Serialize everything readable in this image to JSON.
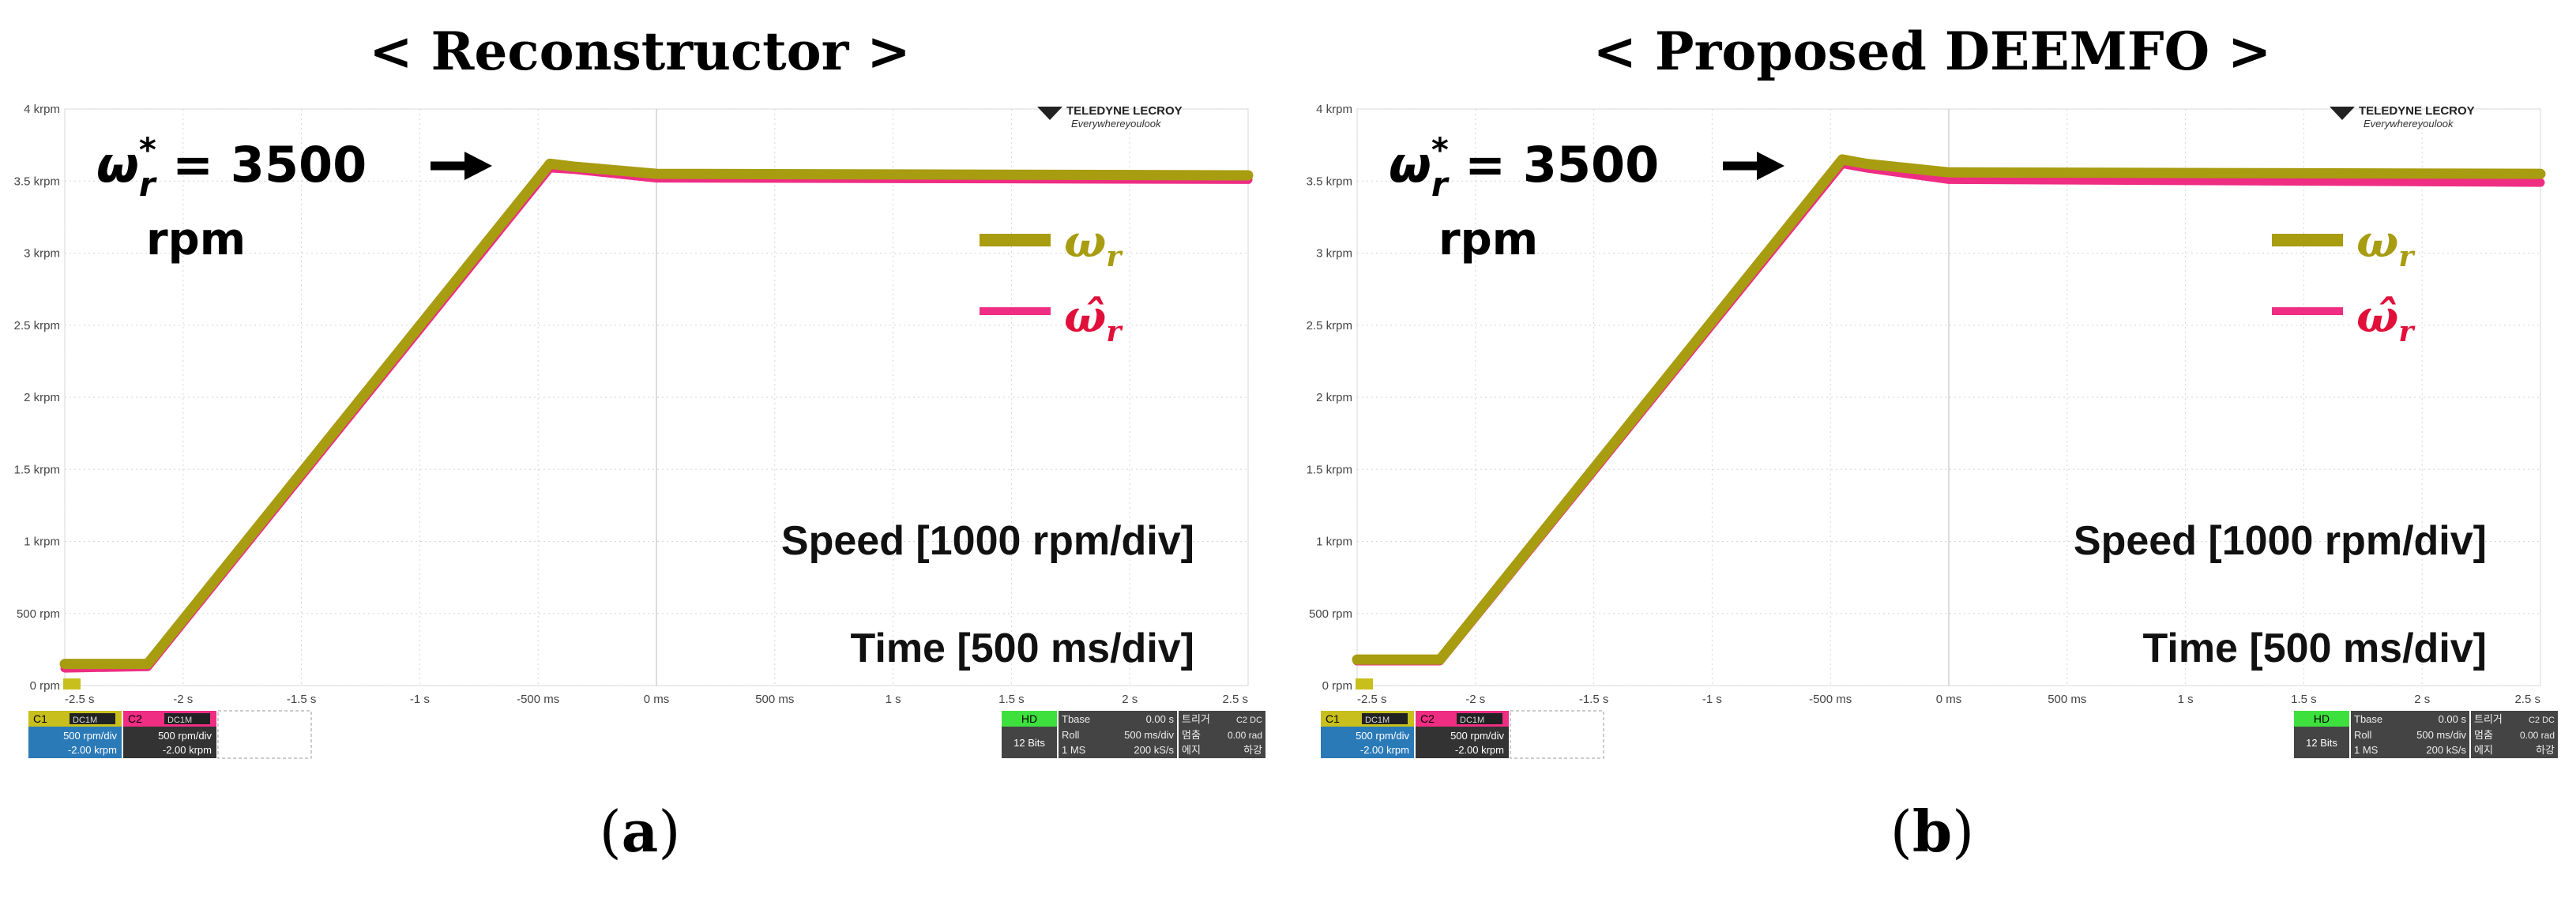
{
  "panels": [
    {
      "id": "a",
      "title": "< Reconstructor >",
      "caption_open": "(",
      "caption_letter": "a",
      "caption_close": ")",
      "y_ticks": [
        "0 rpm",
        "500 rpm",
        "1 krpm",
        "1.5 krpm",
        "2 krpm",
        "2.5 krpm",
        "3 krpm",
        "3.5 krpm",
        "4 krpm"
      ],
      "x_ticks": [
        "-2.5 s",
        "-2 s",
        "-1.5 s",
        "-1 s",
        "-500 ms",
        "0 ms",
        "500 ms",
        "1 s",
        "1.5 s",
        "2 s",
        "2.5 s"
      ],
      "brand": "TELEDYNE LECROY",
      "brand_sub": "Everywhereyoulook",
      "ref_label_math": "ω*r = 3500",
      "ref_label_unit": "rpm",
      "legend": [
        {
          "label": "ωr",
          "color": "#a89c10"
        },
        {
          "label": "ω̂r",
          "color": "#ee2d83"
        }
      ],
      "speed_label": "Speed [1000 rpm/div]",
      "time_label": "Time [500 ms/div]",
      "status": {
        "c1": "C1",
        "c1_mode": "DC1M",
        "c1_scale": "500 rpm/div",
        "c1_offset": "-2.00 krpm",
        "c2": "C2",
        "c2_mode": "DC1M",
        "c2_scale": "500 rpm/div",
        "c2_offset": "-2.00 krpm",
        "hd": "HD",
        "bits": "12 Bits",
        "tbase": "Tbase",
        "tbase_val": "0.00 s",
        "roll": "Roll",
        "roll_val": "500 ms/div",
        "ms": "1 MS",
        "rate": "200 kS/s",
        "trig": "트리거",
        "trig_mode": "C2 DC",
        "stop": "멈춤",
        "stop_val": "0.00 rad",
        "edge": "에지",
        "edge_val": "하강"
      }
    },
    {
      "id": "b",
      "title": "< Proposed DEEMFO >",
      "caption_open": "(",
      "caption_letter": "b",
      "caption_close": ")",
      "y_ticks": [
        "0 rpm",
        "500 rpm",
        "1 krpm",
        "1.5 krpm",
        "2 krpm",
        "2.5 krpm",
        "3 krpm",
        "3.5 krpm",
        "4 krpm"
      ],
      "x_ticks": [
        "-2.5 s",
        "-2 s",
        "-1.5 s",
        "-1 s",
        "-500 ms",
        "0 ms",
        "500 ms",
        "1 s",
        "1.5 s",
        "2 s",
        "2.5 s"
      ],
      "brand": "TELEDYNE LECROY",
      "brand_sub": "Everywhereyoulook",
      "ref_label_math": "ω*r = 3500",
      "ref_label_unit": "rpm",
      "legend": [
        {
          "label": "ωr",
          "color": "#a89c10"
        },
        {
          "label": "ω̂r",
          "color": "#ee2d83"
        }
      ],
      "speed_label": "Speed [1000 rpm/div]",
      "time_label": "Time [500 ms/div]",
      "status": {
        "c1": "C1",
        "c1_mode": "DC1M",
        "c1_scale": "500 rpm/div",
        "c1_offset": "-2.00 krpm",
        "c2": "C2",
        "c2_mode": "DC1M",
        "c2_scale": "500 rpm/div",
        "c2_offset": "-2.00 krpm",
        "hd": "HD",
        "bits": "12 Bits",
        "tbase": "Tbase",
        "tbase_val": "0.00 s",
        "roll": "Roll",
        "roll_val": "500 ms/div",
        "ms": "1 MS",
        "rate": "200 kS/s",
        "trig": "트리거",
        "trig_mode": "C2 DC",
        "stop": "멈춤",
        "stop_val": "0.00 rad",
        "edge": "에지",
        "edge_val": "하강"
      }
    }
  ],
  "chart_data": [
    {
      "type": "line",
      "xlim": [
        -2.5,
        2.5
      ],
      "ylim": [
        0,
        4000
      ],
      "x_unit": "s",
      "y_unit": "rpm",
      "series": [
        {
          "name": "ωr",
          "color": "#a89c10",
          "x": [
            -2.5,
            -2.15,
            -0.45,
            -0.35,
            0.0,
            2.5
          ],
          "y": [
            150,
            150,
            3620,
            3600,
            3550,
            3540
          ]
        },
        {
          "name": "ω̂r",
          "color": "#ee2d83",
          "x": [
            -2.5,
            -2.15,
            -0.45,
            -0.35,
            0.0,
            2.5
          ],
          "y": [
            120,
            130,
            3590,
            3580,
            3520,
            3510
          ]
        }
      ]
    },
    {
      "type": "line",
      "xlim": [
        -2.5,
        2.5
      ],
      "ylim": [
        0,
        4000
      ],
      "x_unit": "s",
      "y_unit": "rpm",
      "series": [
        {
          "name": "ωr",
          "color": "#a89c10",
          "x": [
            -2.5,
            -2.15,
            -0.45,
            -0.35,
            0.0,
            2.5
          ],
          "y": [
            180,
            180,
            3650,
            3620,
            3560,
            3550
          ]
        },
        {
          "name": "ω̂r",
          "color": "#ee2d83",
          "x": [
            -2.5,
            -2.15,
            -0.45,
            -0.35,
            0.0,
            2.5
          ],
          "y": [
            170,
            170,
            3620,
            3590,
            3510,
            3490
          ]
        }
      ]
    }
  ]
}
